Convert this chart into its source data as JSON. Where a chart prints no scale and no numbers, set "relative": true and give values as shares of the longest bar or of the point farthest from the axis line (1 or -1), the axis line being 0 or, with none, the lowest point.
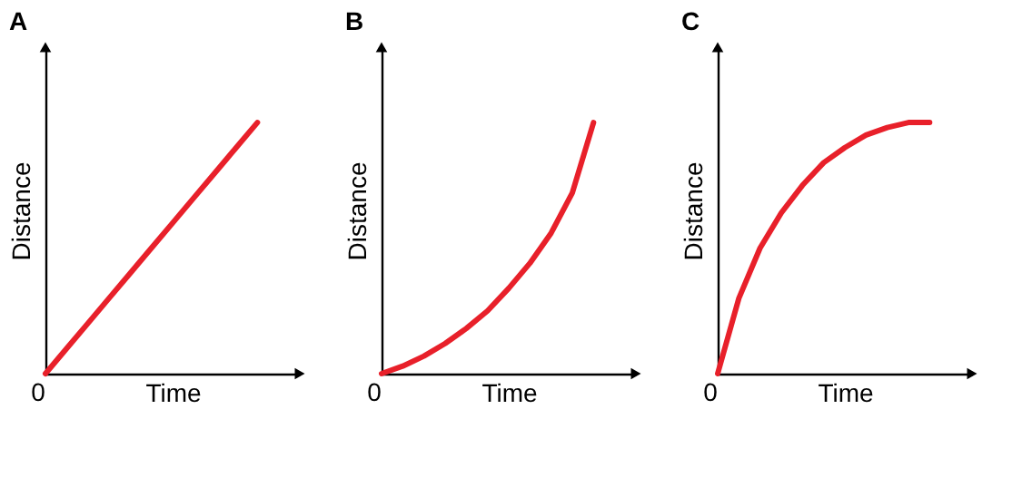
{
  "chart_data": [
    {
      "type": "line",
      "title": "A",
      "xlabel": "Time",
      "ylabel": "Distance",
      "categories": [
        null,
        null,
        null,
        null,
        null,
        null,
        null,
        null,
        null,
        null,
        null
      ],
      "relative": true,
      "tick_labels": false,
      "annotations": [
        "0"
      ],
      "series": [
        {
          "color": "#e8202a",
          "values": [
            0,
            0.1,
            0.2,
            0.3,
            0.4,
            0.5,
            0.6,
            0.7,
            0.8,
            0.9,
            1
          ]
        }
      ]
    },
    {
      "type": "line",
      "title": "B",
      "xlabel": "Time",
      "ylabel": "Distance",
      "categories": [
        null,
        null,
        null,
        null,
        null,
        null,
        null,
        null,
        null,
        null,
        null
      ],
      "relative": true,
      "tick_labels": false,
      "annotations": [
        "0"
      ],
      "series": [
        {
          "color": "#e8202a",
          "values": [
            0,
            0.03,
            0.07,
            0.12,
            0.18,
            0.25,
            0.34,
            0.44,
            0.56,
            0.72,
            1
          ]
        }
      ]
    },
    {
      "type": "line",
      "title": "C",
      "xlabel": "Time",
      "ylabel": "Distance",
      "categories": [
        null,
        null,
        null,
        null,
        null,
        null,
        null,
        null,
        null,
        null,
        null
      ],
      "relative": true,
      "tick_labels": false,
      "annotations": [
        "0"
      ],
      "series": [
        {
          "color": "#e8202a",
          "values": [
            0,
            0.3,
            0.5,
            0.64,
            0.75,
            0.84,
            0.9,
            0.95,
            0.98,
            1,
            1
          ]
        }
      ]
    }
  ]
}
